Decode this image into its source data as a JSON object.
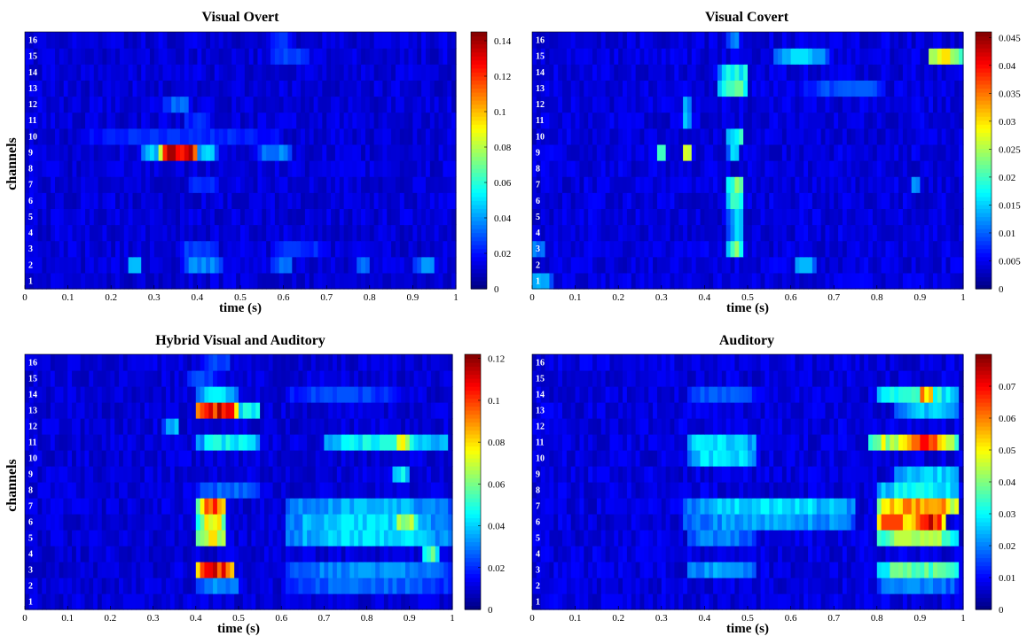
{
  "chart_data": [
    {
      "type": "heatmap",
      "title": "Visual Overt",
      "xlabel": "time (s)",
      "ylabel": "channels",
      "xlim": [
        0,
        1
      ],
      "x_ticks": [
        "0",
        "0.1",
        "0.2",
        "0.3",
        "0.4",
        "0.5",
        "0.6",
        "0.7",
        "0.8",
        "0.9",
        "1"
      ],
      "channels": [
        "1",
        "2",
        "3",
        "4",
        "5",
        "6",
        "7",
        "8",
        "9",
        "10",
        "11",
        "12",
        "13",
        "14",
        "15",
        "16"
      ],
      "colorbar": {
        "min": 0,
        "max": 0.145,
        "ticks": [
          "0",
          "0.02",
          "0.04",
          "0.06",
          "0.08",
          "0.1",
          "0.12",
          "0.14"
        ],
        "tick_values": [
          0,
          0.02,
          0.04,
          0.06,
          0.08,
          0.1,
          0.12,
          0.14
        ]
      },
      "base": 0.012,
      "hotspots": [
        {
          "ch": 9,
          "t0": 0.32,
          "t1": 0.4,
          "v": 0.14
        },
        {
          "ch": 9,
          "t0": 0.27,
          "t1": 0.32,
          "v": 0.05
        },
        {
          "ch": 9,
          "t0": 0.4,
          "t1": 0.44,
          "v": 0.05
        },
        {
          "ch": 9,
          "t0": 0.55,
          "t1": 0.62,
          "v": 0.04
        },
        {
          "ch": 10,
          "t0": 0.13,
          "t1": 0.6,
          "v": 0.026
        },
        {
          "ch": 2,
          "t0": 0.24,
          "t1": 0.27,
          "v": 0.045
        },
        {
          "ch": 2,
          "t0": 0.37,
          "t1": 0.45,
          "v": 0.04
        },
        {
          "ch": 2,
          "t0": 0.57,
          "t1": 0.62,
          "v": 0.035
        },
        {
          "ch": 2,
          "t0": 0.77,
          "t1": 0.8,
          "v": 0.035
        },
        {
          "ch": 2,
          "t0": 0.91,
          "t1": 0.95,
          "v": 0.04
        },
        {
          "ch": 3,
          "t0": 0.36,
          "t1": 0.44,
          "v": 0.03
        },
        {
          "ch": 3,
          "t0": 0.57,
          "t1": 0.7,
          "v": 0.026
        },
        {
          "ch": 12,
          "t0": 0.33,
          "t1": 0.38,
          "v": 0.035
        },
        {
          "ch": 15,
          "t0": 0.57,
          "t1": 0.66,
          "v": 0.03
        },
        {
          "ch": 16,
          "t0": 0.57,
          "t1": 0.62,
          "v": 0.026
        },
        {
          "ch": 7,
          "t0": 0.38,
          "t1": 0.44,
          "v": 0.028
        },
        {
          "ch": 11,
          "t0": 0.37,
          "t1": 0.43,
          "v": 0.026
        }
      ]
    },
    {
      "type": "heatmap",
      "title": "Visual Covert",
      "xlabel": "time (s)",
      "ylabel": "",
      "xlim": [
        0,
        1
      ],
      "x_ticks": [
        "0",
        "0.1",
        "0.2",
        "0.3",
        "0.4",
        "0.5",
        "0.6",
        "0.7",
        "0.8",
        "0.9",
        "1"
      ],
      "channels": [
        "1",
        "2",
        "3",
        "4",
        "5",
        "6",
        "7",
        "8",
        "9",
        "10",
        "11",
        "12",
        "13",
        "14",
        "15",
        "16"
      ],
      "colorbar": {
        "min": 0,
        "max": 0.046,
        "ticks": [
          "0",
          "0.005",
          "0.01",
          "0.015",
          "0.02",
          "0.025",
          "0.03",
          "0.035",
          "0.04",
          "0.045"
        ],
        "tick_values": [
          0,
          0.005,
          0.01,
          0.015,
          0.02,
          0.025,
          0.03,
          0.035,
          0.04,
          0.045
        ]
      },
      "base": 0.004,
      "hotspots": [
        {
          "ch": 15,
          "t0": 0.92,
          "t1": 0.99,
          "v": 0.03
        },
        {
          "ch": 15,
          "t0": 0.56,
          "t1": 0.68,
          "v": 0.016
        },
        {
          "ch": 9,
          "t0": 0.35,
          "t1": 0.37,
          "v": 0.028
        },
        {
          "ch": 9,
          "t0": 0.29,
          "t1": 0.31,
          "v": 0.02
        },
        {
          "ch": 9,
          "t0": 0.46,
          "t1": 0.48,
          "v": 0.016
        },
        {
          "ch": 14,
          "t0": 0.44,
          "t1": 0.5,
          "v": 0.02
        },
        {
          "ch": 13,
          "t0": 0.44,
          "t1": 0.5,
          "v": 0.022
        },
        {
          "ch": 10,
          "t0": 0.46,
          "t1": 0.49,
          "v": 0.02
        },
        {
          "ch": 7,
          "t0": 0.46,
          "t1": 0.49,
          "v": 0.024
        },
        {
          "ch": 6,
          "t0": 0.46,
          "t1": 0.49,
          "v": 0.02
        },
        {
          "ch": 3,
          "t0": 0.46,
          "t1": 0.49,
          "v": 0.024
        },
        {
          "ch": 4,
          "t0": 0.46,
          "t1": 0.49,
          "v": 0.016
        },
        {
          "ch": 5,
          "t0": 0.46,
          "t1": 0.49,
          "v": 0.016
        },
        {
          "ch": 2,
          "t0": 0.61,
          "t1": 0.66,
          "v": 0.014
        },
        {
          "ch": 1,
          "t0": 0.0,
          "t1": 0.04,
          "v": 0.014
        },
        {
          "ch": 3,
          "t0": 0.0,
          "t1": 0.03,
          "v": 0.012
        },
        {
          "ch": 11,
          "t0": 0.35,
          "t1": 0.37,
          "v": 0.015
        },
        {
          "ch": 13,
          "t0": 0.63,
          "t1": 0.82,
          "v": 0.01
        },
        {
          "ch": 12,
          "t0": 0.35,
          "t1": 0.37,
          "v": 0.014
        },
        {
          "ch": 16,
          "t0": 0.46,
          "t1": 0.48,
          "v": 0.014
        },
        {
          "ch": 7,
          "t0": 0.88,
          "t1": 0.9,
          "v": 0.014
        }
      ]
    },
    {
      "type": "heatmap",
      "title": "Hybrid Visual and Auditory",
      "xlabel": "time (s)",
      "ylabel": "channels",
      "xlim": [
        0,
        1
      ],
      "x_ticks": [
        "0",
        "0.1",
        "0.2",
        "0.3",
        "0.4",
        "0.5",
        "0.6",
        "0.7",
        "0.8",
        "0.9",
        "1"
      ],
      "channels": [
        "1",
        "2",
        "3",
        "4",
        "5",
        "6",
        "7",
        "8",
        "9",
        "10",
        "11",
        "12",
        "13",
        "14",
        "15",
        "16"
      ],
      "colorbar": {
        "min": 0,
        "max": 0.122,
        "ticks": [
          "0",
          "0.02",
          "0.04",
          "0.06",
          "0.08",
          "0.1",
          "0.12"
        ],
        "tick_values": [
          0,
          0.02,
          0.04,
          0.06,
          0.08,
          0.1,
          0.12
        ]
      },
      "base": 0.01,
      "hotspots": [
        {
          "ch": 13,
          "t0": 0.4,
          "t1": 0.5,
          "v": 0.118
        },
        {
          "ch": 13,
          "t0": 0.5,
          "t1": 0.55,
          "v": 0.05
        },
        {
          "ch": 3,
          "t0": 0.41,
          "t1": 0.49,
          "v": 0.115
        },
        {
          "ch": 7,
          "t0": 0.41,
          "t1": 0.47,
          "v": 0.105
        },
        {
          "ch": 6,
          "t0": 0.41,
          "t1": 0.47,
          "v": 0.08
        },
        {
          "ch": 5,
          "t0": 0.41,
          "t1": 0.47,
          "v": 0.08
        },
        {
          "ch": 11,
          "t0": 0.87,
          "t1": 0.9,
          "v": 0.085
        },
        {
          "ch": 11,
          "t0": 0.7,
          "t1": 0.99,
          "v": 0.05
        },
        {
          "ch": 11,
          "t0": 0.41,
          "t1": 0.55,
          "v": 0.05
        },
        {
          "ch": 6,
          "t0": 0.61,
          "t1": 0.99,
          "v": 0.045
        },
        {
          "ch": 6,
          "t0": 0.87,
          "t1": 0.92,
          "v": 0.07
        },
        {
          "ch": 7,
          "t0": 0.61,
          "t1": 0.99,
          "v": 0.04
        },
        {
          "ch": 5,
          "t0": 0.61,
          "t1": 0.99,
          "v": 0.045
        },
        {
          "ch": 3,
          "t0": 0.61,
          "t1": 0.99,
          "v": 0.035
        },
        {
          "ch": 2,
          "t0": 0.61,
          "t1": 0.99,
          "v": 0.03
        },
        {
          "ch": 4,
          "t0": 0.93,
          "t1": 0.96,
          "v": 0.06
        },
        {
          "ch": 14,
          "t0": 0.41,
          "t1": 0.5,
          "v": 0.045
        },
        {
          "ch": 14,
          "t0": 0.61,
          "t1": 0.88,
          "v": 0.025
        },
        {
          "ch": 2,
          "t0": 0.41,
          "t1": 0.5,
          "v": 0.035
        },
        {
          "ch": 12,
          "t0": 0.33,
          "t1": 0.36,
          "v": 0.04
        },
        {
          "ch": 9,
          "t0": 0.86,
          "t1": 0.9,
          "v": 0.05
        },
        {
          "ch": 8,
          "t0": 0.41,
          "t1": 0.55,
          "v": 0.03
        },
        {
          "ch": 15,
          "t0": 0.38,
          "t1": 0.45,
          "v": 0.025
        },
        {
          "ch": 16,
          "t0": 0.42,
          "t1": 0.48,
          "v": 0.025
        }
      ]
    },
    {
      "type": "heatmap",
      "title": "Auditory",
      "xlabel": "time (s)",
      "ylabel": "",
      "xlim": [
        0,
        1
      ],
      "x_ticks": [
        "0",
        "0.1",
        "0.2",
        "0.3",
        "0.4",
        "0.5",
        "0.6",
        "0.7",
        "0.8",
        "0.9",
        "1"
      ],
      "channels": [
        "1",
        "2",
        "3",
        "4",
        "5",
        "6",
        "7",
        "8",
        "9",
        "10",
        "11",
        "12",
        "13",
        "14",
        "15",
        "16"
      ],
      "colorbar": {
        "min": 0,
        "max": 0.08,
        "ticks": [
          "0",
          "0.01",
          "0.02",
          "0.03",
          "0.04",
          "0.05",
          "0.06",
          "0.07"
        ],
        "tick_values": [
          0,
          0.01,
          0.02,
          0.03,
          0.04,
          0.05,
          0.06,
          0.07
        ]
      },
      "base": 0.007,
      "hotspots": [
        {
          "ch": 6,
          "t0": 0.88,
          "t1": 0.96,
          "v": 0.078
        },
        {
          "ch": 7,
          "t0": 0.8,
          "t1": 0.99,
          "v": 0.062
        },
        {
          "ch": 6,
          "t0": 0.8,
          "t1": 0.88,
          "v": 0.065
        },
        {
          "ch": 5,
          "t0": 0.8,
          "t1": 0.99,
          "v": 0.045
        },
        {
          "ch": 11,
          "t0": 0.87,
          "t1": 0.95,
          "v": 0.07
        },
        {
          "ch": 11,
          "t0": 0.78,
          "t1": 0.99,
          "v": 0.052
        },
        {
          "ch": 14,
          "t0": 0.9,
          "t1": 0.93,
          "v": 0.062
        },
        {
          "ch": 14,
          "t0": 0.8,
          "t1": 0.99,
          "v": 0.035
        },
        {
          "ch": 3,
          "t0": 0.8,
          "t1": 0.99,
          "v": 0.04
        },
        {
          "ch": 8,
          "t0": 0.8,
          "t1": 0.99,
          "v": 0.032
        },
        {
          "ch": 9,
          "t0": 0.85,
          "t1": 0.99,
          "v": 0.03
        },
        {
          "ch": 7,
          "t0": 0.36,
          "t1": 0.75,
          "v": 0.03
        },
        {
          "ch": 6,
          "t0": 0.36,
          "t1": 0.75,
          "v": 0.025
        },
        {
          "ch": 11,
          "t0": 0.36,
          "t1": 0.52,
          "v": 0.03
        },
        {
          "ch": 10,
          "t0": 0.36,
          "t1": 0.52,
          "v": 0.03
        },
        {
          "ch": 3,
          "t0": 0.36,
          "t1": 0.52,
          "v": 0.025
        },
        {
          "ch": 13,
          "t0": 0.85,
          "t1": 0.99,
          "v": 0.028
        },
        {
          "ch": 2,
          "t0": 0.8,
          "t1": 0.99,
          "v": 0.022
        },
        {
          "ch": 5,
          "t0": 0.36,
          "t1": 0.52,
          "v": 0.022
        },
        {
          "ch": 14,
          "t0": 0.36,
          "t1": 0.52,
          "v": 0.018
        }
      ]
    }
  ]
}
